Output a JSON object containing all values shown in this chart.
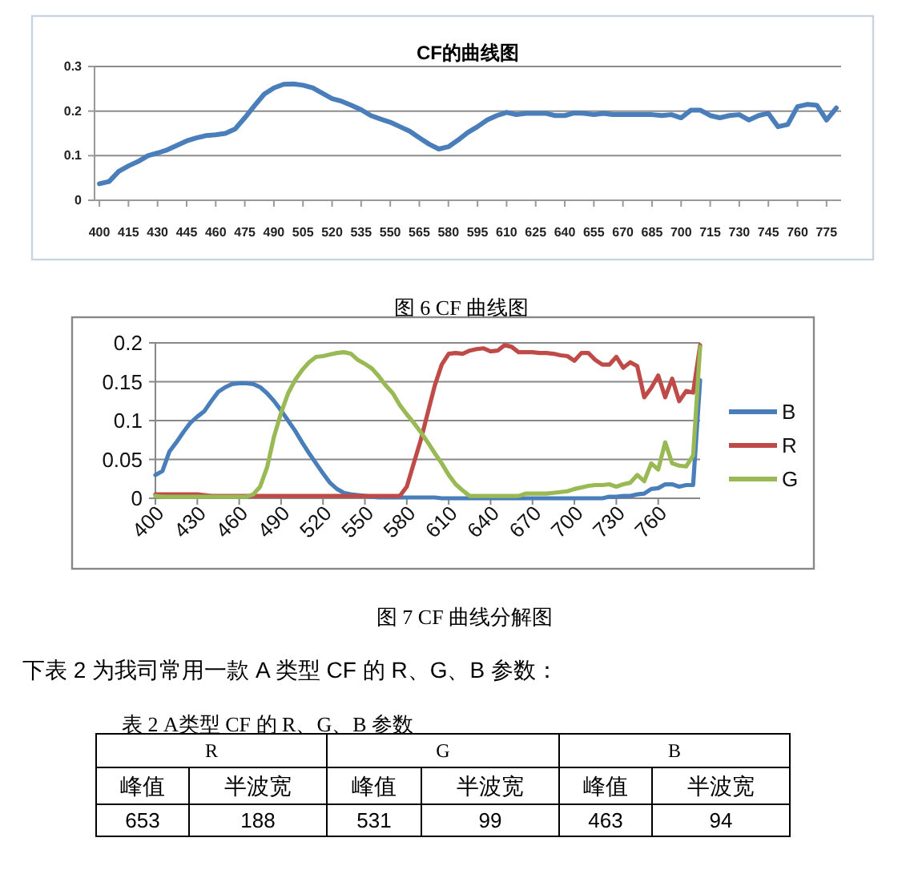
{
  "chart_data": [
    {
      "type": "line",
      "title": "CF的曲线图",
      "annotations": [
        "图 6 CF 曲线图"
      ],
      "xlim": [
        397.5,
        782.5
      ],
      "xticks": [
        400,
        415,
        430,
        445,
        460,
        475,
        490,
        505,
        520,
        535,
        550,
        565,
        580,
        595,
        610,
        625,
        640,
        655,
        670,
        685,
        700,
        715,
        730,
        745,
        760,
        775
      ],
      "ylim": [
        0,
        0.3
      ],
      "yticks": [
        0,
        0.1,
        0.2,
        0.3
      ],
      "grid": "y",
      "legend": false,
      "x": [
        400,
        405,
        410,
        415,
        420,
        425,
        430,
        435,
        440,
        445,
        450,
        455,
        460,
        465,
        470,
        475,
        480,
        485,
        490,
        495,
        500,
        505,
        510,
        515,
        520,
        525,
        530,
        535,
        540,
        545,
        550,
        555,
        560,
        565,
        570,
        575,
        580,
        585,
        590,
        595,
        600,
        605,
        610,
        615,
        620,
        625,
        630,
        635,
        640,
        645,
        650,
        655,
        660,
        665,
        670,
        675,
        680,
        685,
        690,
        695,
        700,
        705,
        710,
        715,
        720,
        725,
        730,
        735,
        740,
        745,
        750,
        755,
        760,
        765,
        770,
        775,
        780
      ],
      "series": [
        {
          "color": "#4a7ebb",
          "values": [
            0.037,
            0.042,
            0.065,
            0.077,
            0.087,
            0.1,
            0.106,
            0.113,
            0.123,
            0.133,
            0.14,
            0.145,
            0.147,
            0.15,
            0.16,
            0.185,
            0.212,
            0.238,
            0.252,
            0.26,
            0.261,
            0.258,
            0.252,
            0.24,
            0.228,
            0.222,
            0.213,
            0.203,
            0.19,
            0.182,
            0.175,
            0.165,
            0.155,
            0.14,
            0.126,
            0.115,
            0.12,
            0.135,
            0.152,
            0.165,
            0.18,
            0.19,
            0.197,
            0.192,
            0.195,
            0.195,
            0.195,
            0.19,
            0.19,
            0.196,
            0.195,
            0.192,
            0.195,
            0.192,
            0.192,
            0.192,
            0.192,
            0.192,
            0.19,
            0.192,
            0.185,
            0.202,
            0.202,
            0.19,
            0.185,
            0.19,
            0.192,
            0.18,
            0.19,
            0.195,
            0.165,
            0.17,
            0.21,
            0.215,
            0.213,
            0.18,
            0.207
          ]
        }
      ]
    },
    {
      "type": "line",
      "annotations": [
        "图 7 CF 曲线分解图",
        "下表 2 为我司常用一款 A 类型 CF 的 R、G、B 参数："
      ],
      "xlim": [
        400,
        790
      ],
      "xticks": [
        400,
        430,
        460,
        490,
        520,
        550,
        580,
        610,
        640,
        670,
        700,
        730,
        760
      ],
      "ylim": [
        0,
        0.2
      ],
      "yticks": [
        0,
        0.05,
        0.1,
        0.15,
        0.2
      ],
      "grid": "y",
      "legend": "right",
      "x": [
        400,
        405,
        410,
        415,
        420,
        425,
        430,
        435,
        440,
        445,
        450,
        455,
        460,
        465,
        470,
        475,
        480,
        485,
        490,
        495,
        500,
        505,
        510,
        515,
        520,
        525,
        530,
        535,
        540,
        545,
        550,
        555,
        560,
        565,
        570,
        575,
        580,
        585,
        590,
        595,
        600,
        605,
        610,
        615,
        620,
        625,
        630,
        635,
        640,
        645,
        650,
        655,
        660,
        665,
        670,
        675,
        680,
        685,
        690,
        695,
        700,
        705,
        710,
        715,
        720,
        725,
        730,
        735,
        740,
        745,
        750,
        755,
        760,
        765,
        770,
        775,
        780,
        785,
        790
      ],
      "series": [
        {
          "name": "B",
          "color": "#4a7ebb",
          "values": [
            0.03,
            0.035,
            0.06,
            0.072,
            0.085,
            0.097,
            0.105,
            0.112,
            0.125,
            0.137,
            0.143,
            0.147,
            0.148,
            0.148,
            0.147,
            0.143,
            0.135,
            0.125,
            0.113,
            0.1,
            0.087,
            0.072,
            0.058,
            0.045,
            0.032,
            0.02,
            0.012,
            0.007,
            0.005,
            0.004,
            0.003,
            0.002,
            0.001,
            0.001,
            0.001,
            0.001,
            0.001,
            0.001,
            0.001,
            0.001,
            0.001,
            0,
            0,
            0,
            0,
            0,
            0,
            0,
            0,
            0,
            0,
            0,
            0,
            0,
            0,
            0,
            0,
            0,
            0,
            0,
            0,
            0,
            0,
            0,
            0,
            0.002,
            0.002,
            0.003,
            0.003,
            0.005,
            0.006,
            0.012,
            0.013,
            0.018,
            0.018,
            0.015,
            0.017,
            0.017,
            0.152
          ]
        },
        {
          "name": "R",
          "color": "#be4b48",
          "values": [
            0.005,
            0.005,
            0.005,
            0.005,
            0.005,
            0.005,
            0.005,
            0.004,
            0.003,
            0.003,
            0.003,
            0.003,
            0.003,
            0.003,
            0.003,
            0.003,
            0.003,
            0.003,
            0.003,
            0.003,
            0.003,
            0.003,
            0.003,
            0.003,
            0.003,
            0.003,
            0.003,
            0.003,
            0.003,
            0.003,
            0.003,
            0.003,
            0.003,
            0.003,
            0.003,
            0.003,
            0.015,
            0.045,
            0.075,
            0.11,
            0.145,
            0.172,
            0.186,
            0.187,
            0.186,
            0.19,
            0.192,
            0.193,
            0.189,
            0.19,
            0.197,
            0.195,
            0.188,
            0.188,
            0.188,
            0.187,
            0.187,
            0.186,
            0.184,
            0.183,
            0.177,
            0.187,
            0.187,
            0.178,
            0.172,
            0.172,
            0.182,
            0.168,
            0.175,
            0.17,
            0.13,
            0.142,
            0.158,
            0.13,
            0.154,
            0.125,
            0.138,
            0.136,
            0.197
          ]
        },
        {
          "name": "G",
          "color": "#98b954",
          "values": [
            0.003,
            0.002,
            0.002,
            0.002,
            0.002,
            0.002,
            0.002,
            0.002,
            0.002,
            0.002,
            0.002,
            0.002,
            0.002,
            0.002,
            0.005,
            0.015,
            0.04,
            0.08,
            0.11,
            0.135,
            0.152,
            0.165,
            0.175,
            0.182,
            0.183,
            0.185,
            0.187,
            0.188,
            0.186,
            0.178,
            0.173,
            0.167,
            0.157,
            0.145,
            0.135,
            0.12,
            0.108,
            0.097,
            0.085,
            0.072,
            0.058,
            0.045,
            0.03,
            0.018,
            0.01,
            0.003,
            0.003,
            0.003,
            0.003,
            0.003,
            0.003,
            0.003,
            0.003,
            0.006,
            0.006,
            0.006,
            0.006,
            0.007,
            0.008,
            0.009,
            0.012,
            0.014,
            0.016,
            0.017,
            0.017,
            0.018,
            0.015,
            0.018,
            0.02,
            0.03,
            0.022,
            0.045,
            0.037,
            0.072,
            0.045,
            0.042,
            0.041,
            0.055,
            0.195
          ]
        }
      ]
    },
    {
      "type": "other",
      "title": "表 2  A类型 CF 的 R、G、B 参数",
      "annotations": [
        "R",
        "G",
        "B",
        "峰值",
        "半波宽",
        "峰值",
        "半波宽",
        "峰值",
        "半波宽",
        "653",
        "188",
        "531",
        "99",
        "463",
        "94"
      ]
    }
  ]
}
